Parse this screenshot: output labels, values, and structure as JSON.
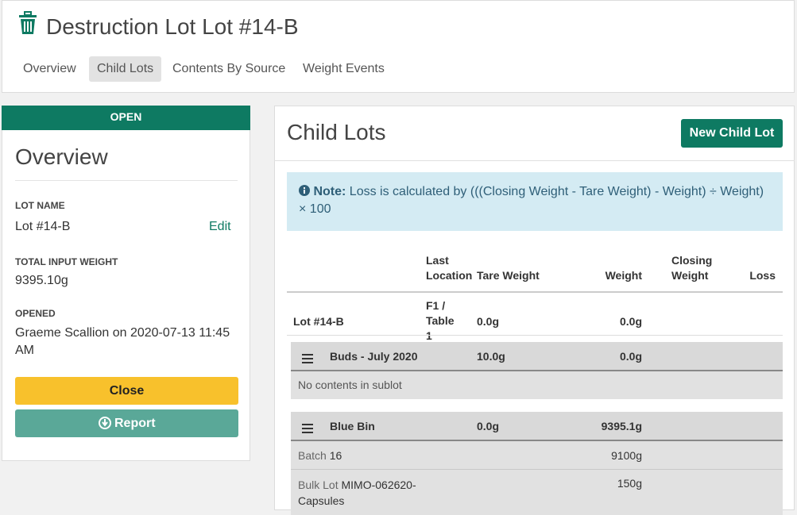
{
  "header": {
    "title": "Destruction Lot Lot #14-B",
    "tabs": [
      "Overview",
      "Child Lots",
      "Contents By Source",
      "Weight Events"
    ]
  },
  "sidebar": {
    "status": "OPEN",
    "heading": "Overview",
    "fields": [
      {
        "label": "LOT NAME",
        "value": "Lot #14-B",
        "action": "Edit"
      },
      {
        "label": "TOTAL INPUT WEIGHT",
        "value": "9395.10g"
      },
      {
        "label": "OPENED",
        "value": "Graeme Scallion on 2020-07-13 11:45 AM"
      }
    ],
    "buttons": [
      "Close",
      "Report"
    ]
  },
  "main": {
    "title": "Child Lots",
    "new_button": "New Child Lot",
    "note": {
      "label": "Note:",
      "text": "Loss is calculated by (((Closing Weight - Tare Weight) - Weight) ÷ Weight) × 100"
    },
    "table": {
      "headers": [
        "Last Location",
        "Tare Weight",
        "Weight",
        "Closing Weight",
        "Loss"
      ],
      "lot_row": {
        "name": "Lot #14-B",
        "location": "F1 / Table 1",
        "tare": "0.0g",
        "weight": "0.0g"
      },
      "sublots": [
        {
          "name": "Buds - July 2020",
          "tare": "10.0g",
          "weight": "0.0g",
          "empty_text": "No contents in sublot"
        },
        {
          "name": "Blue Bin",
          "tare": "0.0g",
          "weight": "9395.1g",
          "contents": [
            {
              "kind": "Batch",
              "id": "16",
              "weight": "9100g"
            },
            {
              "kind": "Bulk Lot",
              "id": "MIMO-062620-Capsules",
              "weight": "150g"
            }
          ]
        }
      ]
    }
  }
}
